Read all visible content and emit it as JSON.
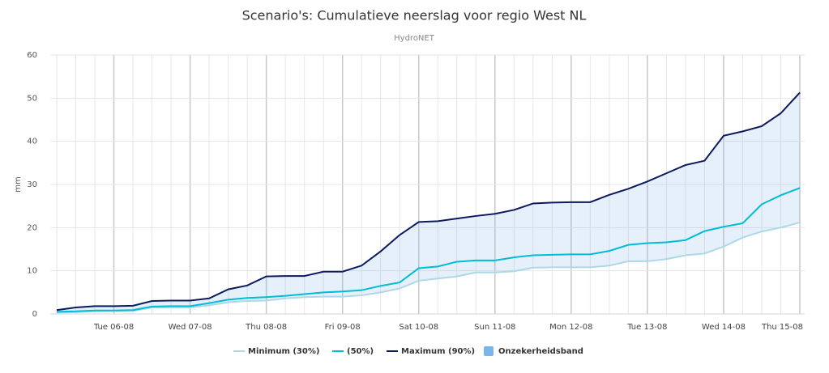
{
  "chart_data": {
    "type": "line",
    "title": "Scenario's: Cumulatieve neerslag voor regio West NL",
    "subtitle": "HydroNET",
    "y_label": "mm",
    "categories": [
      null,
      null,
      null,
      "Tue 06-08",
      null,
      null,
      null,
      "Wed 07-08",
      null,
      null,
      null,
      "Thu 08-08",
      null,
      null,
      null,
      "Fri 09-08",
      null,
      null,
      null,
      "Sat 10-08",
      null,
      null,
      null,
      "Sun 11-08",
      null,
      null,
      null,
      "Mon 12-08",
      null,
      null,
      null,
      "Tue 13-08",
      null,
      null,
      null,
      "Wed 14-08",
      null,
      null,
      null,
      "Thu 15-08"
    ],
    "series": [
      {
        "name": "Minimum (30%)",
        "color": "#add8e6",
        "values": [
          0.3,
          0.4,
          0.6,
          0.7,
          0.7,
          1.5,
          1.5,
          1.5,
          2.0,
          2.7,
          3.0,
          3.1,
          3.6,
          3.9,
          4.0,
          4.0,
          4.3,
          5.0,
          5.9,
          7.7,
          8.2,
          8.7,
          9.6,
          9.6,
          9.9,
          10.7,
          10.8,
          10.8,
          10.8,
          11.2,
          12.2,
          12.2,
          12.7,
          13.6,
          14.0,
          15.6,
          17.7,
          19.1,
          20.0,
          21.2
        ]
      },
      {
        "name": "(50%)",
        "color": "#00bcd4",
        "values": [
          0.5,
          0.6,
          0.8,
          0.8,
          0.9,
          1.7,
          1.8,
          1.8,
          2.5,
          3.3,
          3.7,
          3.9,
          4.2,
          4.6,
          5.0,
          5.2,
          5.5,
          6.5,
          7.3,
          10.6,
          11.0,
          12.1,
          12.4,
          12.4,
          13.1,
          13.6,
          13.7,
          13.8,
          13.8,
          14.6,
          16.0,
          16.4,
          16.6,
          17.1,
          19.2,
          20.2,
          21.0,
          25.4,
          27.5,
          29.2
        ]
      },
      {
        "name": "Maximum (90%)",
        "color": "#0d1a5e",
        "values": [
          0.9,
          1.5,
          1.8,
          1.8,
          1.9,
          3.0,
          3.1,
          3.1,
          3.6,
          5.7,
          6.6,
          8.7,
          8.8,
          8.8,
          9.8,
          9.8,
          11.2,
          14.5,
          18.3,
          21.3,
          21.5,
          22.1,
          22.7,
          23.2,
          24.1,
          25.6,
          25.8,
          25.9,
          25.9,
          27.6,
          29.0,
          30.7,
          32.6,
          34.5,
          35.5,
          41.3,
          42.3,
          43.5,
          46.5,
          51.3
        ]
      }
    ],
    "band": {
      "name": "Onzekerheidsband",
      "color": "#7cb5ec"
    },
    "ylim": [
      0,
      60
    ],
    "yticks": [
      0,
      10,
      20,
      30,
      40,
      50,
      60
    ],
    "grid": true
  }
}
